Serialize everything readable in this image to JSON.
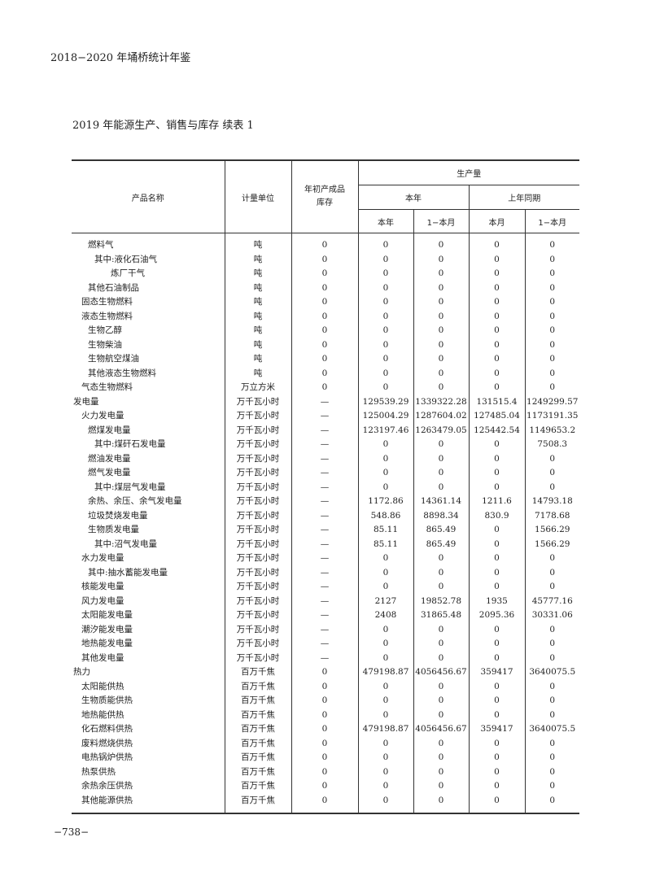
{
  "running_head": "2018−2020 年埇桥统计年鉴",
  "table_title": "2019 年能源生产、销售与库存 续表 1",
  "page_number": "−738−",
  "headers": {
    "product": "产品名称",
    "unit": "计量单位",
    "opening_stock": "年初产成品库存",
    "production": "生产量",
    "this_year": "本年",
    "last_year_same": "上年同期",
    "sub_this_year": "本年",
    "sub_jan_to_month": "1−本月",
    "sub_this_month": "本月",
    "sub_jan_to_month_2": "1−本月"
  },
  "rows": [
    {
      "name": "燃料气",
      "level": 2,
      "unit": "吨",
      "stock": "0",
      "v1": "0",
      "v2": "0",
      "v3": "0",
      "v4": "0"
    },
    {
      "name": "其中:液化石油气",
      "level": 3,
      "unit": "吨",
      "stock": "0",
      "v1": "0",
      "v2": "0",
      "v3": "0",
      "v4": "0"
    },
    {
      "name": "炼厂干气",
      "level": 4,
      "unit": "吨",
      "stock": "0",
      "v1": "0",
      "v2": "0",
      "v3": "0",
      "v4": "0"
    },
    {
      "name": "其他石油制品",
      "level": 2,
      "unit": "吨",
      "stock": "0",
      "v1": "0",
      "v2": "0",
      "v3": "0",
      "v4": "0"
    },
    {
      "name": "固态生物燃料",
      "level": 1,
      "unit": "吨",
      "stock": "0",
      "v1": "0",
      "v2": "0",
      "v3": "0",
      "v4": "0"
    },
    {
      "name": "液态生物燃料",
      "level": 1,
      "unit": "吨",
      "stock": "0",
      "v1": "0",
      "v2": "0",
      "v3": "0",
      "v4": "0"
    },
    {
      "name": "生物乙醇",
      "level": 2,
      "unit": "吨",
      "stock": "0",
      "v1": "0",
      "v2": "0",
      "v3": "0",
      "v4": "0"
    },
    {
      "name": "生物柴油",
      "level": 2,
      "unit": "吨",
      "stock": "0",
      "v1": "0",
      "v2": "0",
      "v3": "0",
      "v4": "0"
    },
    {
      "name": "生物航空煤油",
      "level": 2,
      "unit": "吨",
      "stock": "0",
      "v1": "0",
      "v2": "0",
      "v3": "0",
      "v4": "0"
    },
    {
      "name": "其他液态生物燃料",
      "level": 2,
      "unit": "吨",
      "stock": "0",
      "v1": "0",
      "v2": "0",
      "v3": "0",
      "v4": "0"
    },
    {
      "name": "气态生物燃料",
      "level": 1,
      "unit": "万立方米",
      "stock": "0",
      "v1": "0",
      "v2": "0",
      "v3": "0",
      "v4": "0"
    },
    {
      "name": "发电量",
      "level": 0,
      "unit": "万千瓦小时",
      "stock": "—",
      "v1": "129539.29",
      "v2": "1339322.28",
      "v3": "131515.4",
      "v4": "1249299.57"
    },
    {
      "name": "火力发电量",
      "level": 1,
      "unit": "万千瓦小时",
      "stock": "—",
      "v1": "125004.29",
      "v2": "1287604.02",
      "v3": "127485.04",
      "v4": "1173191.35"
    },
    {
      "name": "燃煤发电量",
      "level": 2,
      "unit": "万千瓦小时",
      "stock": "—",
      "v1": "123197.46",
      "v2": "1263479.05",
      "v3": "125442.54",
      "v4": "1149653.2"
    },
    {
      "name": "其中:煤矸石发电量",
      "level": 3,
      "unit": "万千瓦小时",
      "stock": "—",
      "v1": "0",
      "v2": "0",
      "v3": "0",
      "v4": "7508.3"
    },
    {
      "name": "燃油发电量",
      "level": 2,
      "unit": "万千瓦小时",
      "stock": "—",
      "v1": "0",
      "v2": "0",
      "v3": "0",
      "v4": "0"
    },
    {
      "name": "燃气发电量",
      "level": 2,
      "unit": "万千瓦小时",
      "stock": "—",
      "v1": "0",
      "v2": "0",
      "v3": "0",
      "v4": "0"
    },
    {
      "name": "其中:煤层气发电量",
      "level": 3,
      "unit": "万千瓦小时",
      "stock": "—",
      "v1": "0",
      "v2": "0",
      "v3": "0",
      "v4": "0"
    },
    {
      "name": "余热、余压、余气发电量",
      "level": 2,
      "unit": "万千瓦小时",
      "stock": "—",
      "v1": "1172.86",
      "v2": "14361.14",
      "v3": "1211.6",
      "v4": "14793.18"
    },
    {
      "name": "垃圾焚烧发电量",
      "level": 2,
      "unit": "万千瓦小时",
      "stock": "—",
      "v1": "548.86",
      "v2": "8898.34",
      "v3": "830.9",
      "v4": "7178.68"
    },
    {
      "name": "生物质发电量",
      "level": 2,
      "unit": "万千瓦小时",
      "stock": "—",
      "v1": "85.11",
      "v2": "865.49",
      "v3": "0",
      "v4": "1566.29"
    },
    {
      "name": "其中:沼气发电量",
      "level": 3,
      "unit": "万千瓦小时",
      "stock": "—",
      "v1": "85.11",
      "v2": "865.49",
      "v3": "0",
      "v4": "1566.29"
    },
    {
      "name": "水力发电量",
      "level": 1,
      "unit": "万千瓦小时",
      "stock": "—",
      "v1": "0",
      "v2": "0",
      "v3": "0",
      "v4": "0"
    },
    {
      "name": "其中:抽水蓄能发电量",
      "level": 2,
      "unit": "万千瓦小时",
      "stock": "—",
      "v1": "0",
      "v2": "0",
      "v3": "0",
      "v4": "0"
    },
    {
      "name": "核能发电量",
      "level": 1,
      "unit": "万千瓦小时",
      "stock": "—",
      "v1": "0",
      "v2": "0",
      "v3": "0",
      "v4": "0"
    },
    {
      "name": "风力发电量",
      "level": 1,
      "unit": "万千瓦小时",
      "stock": "—",
      "v1": "2127",
      "v2": "19852.78",
      "v3": "1935",
      "v4": "45777.16"
    },
    {
      "name": "太阳能发电量",
      "level": 1,
      "unit": "万千瓦小时",
      "stock": "—",
      "v1": "2408",
      "v2": "31865.48",
      "v3": "2095.36",
      "v4": "30331.06"
    },
    {
      "name": "潮汐能发电量",
      "level": 1,
      "unit": "万千瓦小时",
      "stock": "—",
      "v1": "0",
      "v2": "0",
      "v3": "0",
      "v4": "0"
    },
    {
      "name": "地热能发电量",
      "level": 1,
      "unit": "万千瓦小时",
      "stock": "—",
      "v1": "0",
      "v2": "0",
      "v3": "0",
      "v4": "0"
    },
    {
      "name": "其他发电量",
      "level": 1,
      "unit": "万千瓦小时",
      "stock": "—",
      "v1": "0",
      "v2": "0",
      "v3": "0",
      "v4": "0"
    },
    {
      "name": "热力",
      "level": 0,
      "unit": "百万千焦",
      "stock": "0",
      "v1": "479198.87",
      "v2": "4056456.67",
      "v3": "359417",
      "v4": "3640075.5"
    },
    {
      "name": "太阳能供热",
      "level": 1,
      "unit": "百万千焦",
      "stock": "0",
      "v1": "0",
      "v2": "0",
      "v3": "0",
      "v4": "0"
    },
    {
      "name": "生物质能供热",
      "level": 1,
      "unit": "百万千焦",
      "stock": "0",
      "v1": "0",
      "v2": "0",
      "v3": "0",
      "v4": "0"
    },
    {
      "name": "地热能供热",
      "level": 1,
      "unit": "百万千焦",
      "stock": "0",
      "v1": "0",
      "v2": "0",
      "v3": "0",
      "v4": "0"
    },
    {
      "name": "化石燃料供热",
      "level": 1,
      "unit": "百万千焦",
      "stock": "0",
      "v1": "479198.87",
      "v2": "4056456.67",
      "v3": "359417",
      "v4": "3640075.5"
    },
    {
      "name": "废料燃烧供热",
      "level": 1,
      "unit": "百万千焦",
      "stock": "0",
      "v1": "0",
      "v2": "0",
      "v3": "0",
      "v4": "0"
    },
    {
      "name": "电热锅炉供热",
      "level": 1,
      "unit": "百万千焦",
      "stock": "0",
      "v1": "0",
      "v2": "0",
      "v3": "0",
      "v4": "0"
    },
    {
      "name": "热泵供热",
      "level": 1,
      "unit": "百万千焦",
      "stock": "0",
      "v1": "0",
      "v2": "0",
      "v3": "0",
      "v4": "0"
    },
    {
      "name": "余热余压供热",
      "level": 1,
      "unit": "百万千焦",
      "stock": "0",
      "v1": "0",
      "v2": "0",
      "v3": "0",
      "v4": "0"
    },
    {
      "name": "其他能源供热",
      "level": 1,
      "unit": "百万千焦",
      "stock": "0",
      "v1": "0",
      "v2": "0",
      "v3": "0",
      "v4": "0"
    }
  ]
}
